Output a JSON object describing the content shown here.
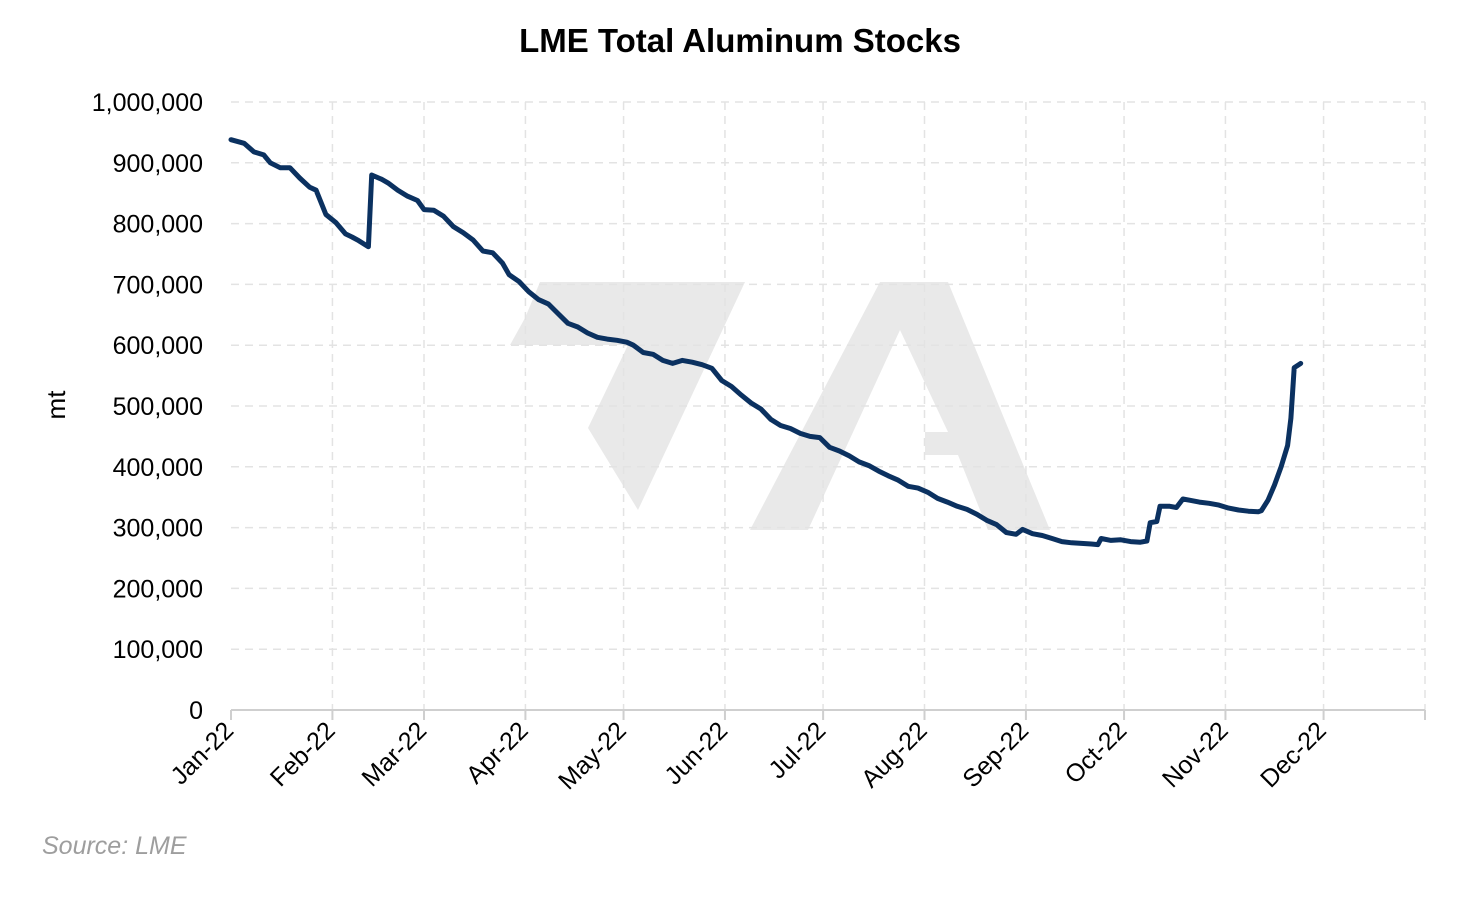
{
  "chart_data": {
    "type": "line",
    "title": "LME Total Aluminum Stocks",
    "xlabel": "",
    "ylabel": "mt",
    "source": "Source: LME",
    "x_ticks": [
      "Jan-22",
      "Feb-22",
      "Mar-22",
      "Apr-22",
      "May-22",
      "Jun-22",
      "Jul-22",
      "Aug-22",
      "Sep-22",
      "Oct-22",
      "Nov-22",
      "Dec-22"
    ],
    "x_range": [
      "2022-01-01",
      "2023-01-01"
    ],
    "y_ticks": [
      "0",
      "100,000",
      "200,000",
      "300,000",
      "400,000",
      "500,000",
      "600,000",
      "700,000",
      "800,000",
      "900,000",
      "1,000,000"
    ],
    "ylim": [
      0,
      1000000
    ],
    "grid": true,
    "legend": "none",
    "color": "#0b3160",
    "series": [
      {
        "points": [
          [
            "2022-01-01",
            938000
          ],
          [
            "2022-01-05",
            932000
          ],
          [
            "2022-01-08",
            918000
          ],
          [
            "2022-01-11",
            913000
          ],
          [
            "2022-01-13",
            900000
          ],
          [
            "2022-01-16",
            892000
          ],
          [
            "2022-01-19",
            892000
          ],
          [
            "2022-01-22",
            875000
          ],
          [
            "2022-01-25",
            860000
          ],
          [
            "2022-01-27",
            855000
          ],
          [
            "2022-01-30",
            815000
          ],
          [
            "2022-02-02",
            802000
          ],
          [
            "2022-02-05",
            783000
          ],
          [
            "2022-02-07",
            778000
          ],
          [
            "2022-02-09",
            772000
          ],
          [
            "2022-02-12",
            762000
          ],
          [
            "2022-02-13",
            880000
          ],
          [
            "2022-02-16",
            873000
          ],
          [
            "2022-02-18",
            867000
          ],
          [
            "2022-02-21",
            855000
          ],
          [
            "2022-02-24",
            845000
          ],
          [
            "2022-02-27",
            838000
          ],
          [
            "2022-03-01",
            823000
          ],
          [
            "2022-03-04",
            822000
          ],
          [
            "2022-03-07",
            812000
          ],
          [
            "2022-03-10",
            795000
          ],
          [
            "2022-03-13",
            785000
          ],
          [
            "2022-03-16",
            773000
          ],
          [
            "2022-03-19",
            755000
          ],
          [
            "2022-03-22",
            752000
          ],
          [
            "2022-03-25",
            735000
          ],
          [
            "2022-03-27",
            716000
          ],
          [
            "2022-03-30",
            705000
          ],
          [
            "2022-04-02",
            688000
          ],
          [
            "2022-04-05",
            675000
          ],
          [
            "2022-04-08",
            668000
          ],
          [
            "2022-04-11",
            652000
          ],
          [
            "2022-04-14",
            636000
          ],
          [
            "2022-04-17",
            630000
          ],
          [
            "2022-04-20",
            620000
          ],
          [
            "2022-04-23",
            613000
          ],
          [
            "2022-04-26",
            610000
          ],
          [
            "2022-04-29",
            608000
          ],
          [
            "2022-05-02",
            605000
          ],
          [
            "2022-05-04",
            600000
          ],
          [
            "2022-05-07",
            588000
          ],
          [
            "2022-05-10",
            585000
          ],
          [
            "2022-05-13",
            575000
          ],
          [
            "2022-05-16",
            570000
          ],
          [
            "2022-05-19",
            575000
          ],
          [
            "2022-05-22",
            572000
          ],
          [
            "2022-05-25",
            568000
          ],
          [
            "2022-05-28",
            562000
          ],
          [
            "2022-05-31",
            542000
          ],
          [
            "2022-06-03",
            532000
          ],
          [
            "2022-06-06",
            518000
          ],
          [
            "2022-06-09",
            505000
          ],
          [
            "2022-06-12",
            495000
          ],
          [
            "2022-06-15",
            478000
          ],
          [
            "2022-06-18",
            468000
          ],
          [
            "2022-06-21",
            463000
          ],
          [
            "2022-06-24",
            455000
          ],
          [
            "2022-06-27",
            450000
          ],
          [
            "2022-06-30",
            448000
          ],
          [
            "2022-07-03",
            432000
          ],
          [
            "2022-07-06",
            426000
          ],
          [
            "2022-07-09",
            418000
          ],
          [
            "2022-07-12",
            408000
          ],
          [
            "2022-07-15",
            402000
          ],
          [
            "2022-07-18",
            393000
          ],
          [
            "2022-07-21",
            385000
          ],
          [
            "2022-07-24",
            378000
          ],
          [
            "2022-07-27",
            368000
          ],
          [
            "2022-07-30",
            365000
          ],
          [
            "2022-08-02",
            358000
          ],
          [
            "2022-08-05",
            348000
          ],
          [
            "2022-08-08",
            342000
          ],
          [
            "2022-08-11",
            335000
          ],
          [
            "2022-08-14",
            330000
          ],
          [
            "2022-08-17",
            322000
          ],
          [
            "2022-08-20",
            312000
          ],
          [
            "2022-08-23",
            305000
          ],
          [
            "2022-08-26",
            292000
          ],
          [
            "2022-08-29",
            289000
          ],
          [
            "2022-08-31",
            297000
          ],
          [
            "2022-09-03",
            290000
          ],
          [
            "2022-09-06",
            287000
          ],
          [
            "2022-09-09",
            282000
          ],
          [
            "2022-09-12",
            277000
          ],
          [
            "2022-09-15",
            275000
          ],
          [
            "2022-09-18",
            274000
          ],
          [
            "2022-09-21",
            273000
          ],
          [
            "2022-09-23",
            272000
          ],
          [
            "2022-09-24",
            282000
          ],
          [
            "2022-09-27",
            279000
          ],
          [
            "2022-09-30",
            280000
          ],
          [
            "2022-10-03",
            277000
          ],
          [
            "2022-10-06",
            276000
          ],
          [
            "2022-10-08",
            278000
          ],
          [
            "2022-10-09",
            308000
          ],
          [
            "2022-10-11",
            310000
          ],
          [
            "2022-10-12",
            335000
          ],
          [
            "2022-10-15",
            335000
          ],
          [
            "2022-10-17",
            333000
          ],
          [
            "2022-10-19",
            347000
          ],
          [
            "2022-10-21",
            345000
          ],
          [
            "2022-10-24",
            342000
          ],
          [
            "2022-10-27",
            340000
          ],
          [
            "2022-10-30",
            337000
          ],
          [
            "2022-11-02",
            332000
          ],
          [
            "2022-11-05",
            329000
          ],
          [
            "2022-11-08",
            327000
          ],
          [
            "2022-11-11",
            326000
          ],
          [
            "2022-11-12",
            328000
          ],
          [
            "2022-11-14",
            345000
          ],
          [
            "2022-11-16",
            370000
          ],
          [
            "2022-11-18",
            400000
          ],
          [
            "2022-11-20",
            435000
          ],
          [
            "2022-11-21",
            480000
          ],
          [
            "2022-11-22",
            563000
          ],
          [
            "2022-11-24",
            570000
          ]
        ]
      }
    ]
  }
}
